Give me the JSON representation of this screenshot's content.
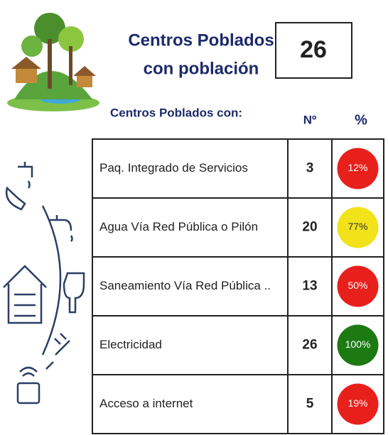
{
  "header": {
    "title_line1": "Centros Poblados",
    "title_line2": "con población",
    "total": "26"
  },
  "table": {
    "label_header": "Centros Poblados con:",
    "count_header": "Nº",
    "percent_header": "%",
    "rows": [
      {
        "label": "Paq. Integrado de Servicios",
        "count": "3",
        "percent": "12%",
        "color": "#e8201c",
        "text_color": "#ffffff"
      },
      {
        "label": "Agua Vía Red Pública o Pilón",
        "count": "20",
        "percent": "77%",
        "color": "#f2e21a",
        "text_color": "#333333"
      },
      {
        "label": "Saneamiento Vía Red Pública ..",
        "count": "13",
        "percent": "50%",
        "color": "#e8201c",
        "text_color": "#ffffff"
      },
      {
        "label": "Electricidad",
        "count": "26",
        "percent": "100%",
        "color": "#1d7a12",
        "text_color": "#ffffff"
      },
      {
        "label": "Acceso a internet",
        "count": "5",
        "percent": "19%",
        "color": "#e8201c",
        "text_color": "#ffffff"
      }
    ]
  }
}
